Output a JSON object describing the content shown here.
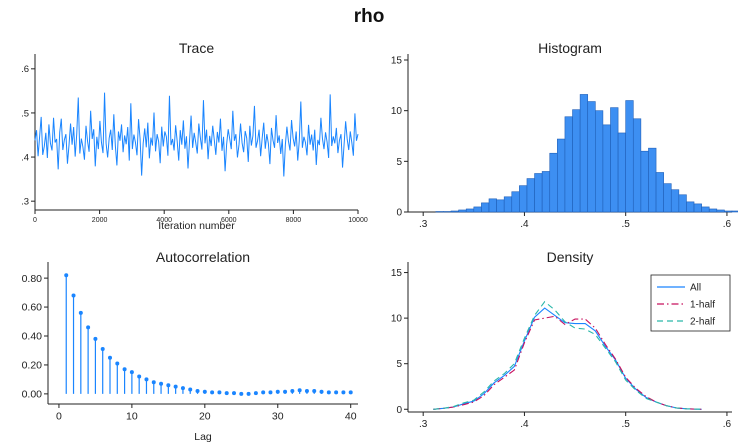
{
  "title": "rho",
  "colors": {
    "series": "#1a85ff",
    "bar_fill": "#3d8ff2",
    "bar_stroke": "#1f5fb8",
    "axis": "#222222",
    "half1": "#c8105e",
    "half2": "#2ab7a9"
  },
  "chart_data": [
    {
      "type": "line",
      "title": "Trace",
      "xlabel": "Iteration number",
      "ylabel": "",
      "xlim": [
        0,
        10000
      ],
      "ylim": [
        0.28,
        0.62
      ],
      "x_ticks": [
        0,
        2000,
        4000,
        6000,
        8000,
        10000
      ],
      "x_tick_labels": [
        "0",
        "2000",
        "4000",
        "6000",
        "8000",
        "10000"
      ],
      "y_ticks": [
        0.3,
        0.4,
        0.5,
        0.6
      ],
      "y_tick_labels": [
        ".3",
        ".4",
        ".5",
        ".6"
      ],
      "series": [
        {
          "values": [
            0.438,
            0.461,
            0.402,
            0.447,
            0.491,
            0.405,
            0.424,
            0.455,
            0.398,
            0.474,
            0.431,
            0.415,
            0.489,
            0.433,
            0.441,
            0.372,
            0.456,
            0.487,
            0.416,
            0.439,
            0.452,
            0.385,
            0.427,
            0.476,
            0.428,
            0.468,
            0.401,
            0.452,
            0.535,
            0.408,
            0.442,
            0.423,
            0.394,
            0.471,
            0.436,
            0.412,
            0.505,
            0.441,
            0.463,
            0.379,
            0.446,
            0.418,
            0.482,
            0.433,
            0.409,
            0.546,
            0.431,
            0.399,
            0.443,
            0.462,
            0.416,
            0.497,
            0.425,
            0.381,
            0.458,
            0.437,
            0.474,
            0.411,
            0.449,
            0.429,
            0.468,
            0.392,
            0.522,
            0.418,
            0.451,
            0.433,
            0.404,
            0.486,
            0.441,
            0.358,
            0.431,
            0.465,
            0.422,
            0.478,
            0.397,
            0.444,
            0.426,
            0.501,
            0.413,
            0.452,
            0.435,
            0.386,
            0.469,
            0.424,
            0.458,
            0.446,
            0.403,
            0.539,
            0.427,
            0.441,
            0.415,
            0.472,
            0.436,
            0.392,
            0.461,
            0.428,
            0.483,
            0.419,
            0.447,
            0.374,
            0.438,
            0.494,
            0.421,
            0.455,
            0.433,
            0.408,
            0.476,
            0.444,
            0.417,
            0.529,
            0.431,
            0.462,
            0.395,
            0.448,
            0.425,
            0.471,
            0.439,
            0.405,
            0.457,
            0.433,
            0.487,
            0.414,
            0.446,
            0.368,
            0.429,
            0.463,
            0.441,
            0.418,
            0.505,
            0.437,
            0.452,
            0.399,
            0.428,
            0.476,
            0.432,
            0.411,
            0.459,
            0.443,
            0.389,
            0.471,
            0.426,
            0.448,
            0.516,
            0.421,
            0.437,
            0.462,
            0.402,
            0.443,
            0.478,
            0.419,
            0.452,
            0.431,
            0.384,
            0.466,
            0.438,
            0.421,
            0.495,
            0.432,
            0.449,
            0.407,
            0.441,
            0.356,
            0.428,
            0.469,
            0.436,
            0.415,
            0.484,
            0.443,
            0.424,
            0.458,
            0.392,
            0.437,
            0.526,
            0.421,
            0.446,
            0.433,
            0.404,
            0.473,
            0.428,
            0.451,
            0.415,
            0.462,
            0.382,
            0.439,
            0.427,
            0.489,
            0.442,
            0.418,
            0.456,
            0.434,
            0.398,
            0.542,
            0.425,
            0.447,
            0.431,
            0.466,
            0.409,
            0.438,
            0.452,
            0.376,
            0.429,
            0.481,
            0.441,
            0.416,
            0.458,
            0.433,
            0.403,
            0.499,
            0.437,
            0.452
          ]
        }
      ]
    },
    {
      "type": "bar",
      "title": "Histogram",
      "xlim": [
        0.285,
        0.605
      ],
      "ylim": [
        0,
        15
      ],
      "x_ticks": [
        0.3,
        0.4,
        0.5,
        0.6
      ],
      "x_tick_labels": [
        ".3",
        ".4",
        ".5",
        ".6"
      ],
      "y_ticks": [
        0,
        5,
        10,
        15
      ],
      "y_tick_labels": [
        "0",
        "5",
        "10",
        "15"
      ],
      "bin_start": 0.3125,
      "bin_width": 0.0075,
      "values": [
        0.05,
        0.05,
        0.1,
        0.2,
        0.3,
        0.5,
        0.9,
        1.3,
        1.2,
        1.5,
        2.0,
        2.6,
        3.3,
        3.8,
        4.0,
        5.8,
        7.2,
        9.4,
        10.1,
        11.6,
        10.9,
        10.0,
        8.6,
        10.3,
        7.8,
        11.0,
        9.2,
        6.0,
        6.3,
        3.9,
        2.8,
        2.2,
        1.7,
        1.0,
        0.8,
        0.5,
        0.3,
        0.2,
        0.1,
        0.1,
        0.05,
        0.03,
        0.03,
        0.02,
        0.02,
        0.02,
        0.02,
        0.02,
        0.01,
        0.01,
        0.01,
        0.01,
        0.01,
        0.01,
        0.01,
        0.01,
        0.01
      ]
    },
    {
      "type": "scatter",
      "title": "Autocorrelation",
      "xlabel": "Lag",
      "xlim": [
        -1.5,
        41
      ],
      "ylim": [
        -0.07,
        0.87
      ],
      "x_ticks": [
        0,
        10,
        20,
        30,
        40
      ],
      "x_tick_labels": [
        "0",
        "10",
        "20",
        "30",
        "40"
      ],
      "y_ticks": [
        0.0,
        0.2,
        0.4,
        0.6,
        0.8
      ],
      "y_tick_labels": [
        "0.00",
        "0.20",
        "0.40",
        "0.60",
        "0.80"
      ],
      "x": [
        1,
        2,
        3,
        4,
        5,
        6,
        7,
        8,
        9,
        10,
        11,
        12,
        13,
        14,
        15,
        16,
        17,
        18,
        19,
        20,
        21,
        22,
        23,
        24,
        25,
        26,
        27,
        28,
        29,
        30,
        31,
        32,
        33,
        34,
        35,
        36,
        37,
        38,
        39,
        40
      ],
      "values": [
        0.82,
        0.68,
        0.56,
        0.46,
        0.38,
        0.31,
        0.25,
        0.21,
        0.17,
        0.15,
        0.12,
        0.1,
        0.08,
        0.07,
        0.06,
        0.05,
        0.04,
        0.03,
        0.02,
        0.015,
        0.01,
        0.01,
        0.005,
        0.005,
        0.0,
        0.0,
        0.005,
        0.01,
        0.01,
        0.015,
        0.015,
        0.02,
        0.025,
        0.02,
        0.02,
        0.015,
        0.01,
        0.01,
        0.01,
        0.01
      ]
    },
    {
      "type": "line",
      "title": "Density",
      "xlim": [
        0.285,
        0.605
      ],
      "ylim": [
        -0.3,
        15.5
      ],
      "x_ticks": [
        0.3,
        0.4,
        0.5,
        0.6
      ],
      "x_tick_labels": [
        ".3",
        ".4",
        ".5",
        ".6"
      ],
      "y_ticks": [
        0,
        5,
        10,
        15
      ],
      "y_tick_labels": [
        "0",
        "5",
        "10",
        "15"
      ],
      "legend_position": "top-right",
      "x": [
        0.31,
        0.32,
        0.33,
        0.34,
        0.35,
        0.36,
        0.37,
        0.38,
        0.39,
        0.4,
        0.41,
        0.42,
        0.43,
        0.44,
        0.45,
        0.46,
        0.47,
        0.48,
        0.49,
        0.5,
        0.51,
        0.52,
        0.53,
        0.54,
        0.55,
        0.56,
        0.575
      ],
      "series": [
        {
          "name": "All",
          "values": [
            0.0,
            0.1,
            0.25,
            0.6,
            0.9,
            1.7,
            2.9,
            3.7,
            4.7,
            7.5,
            10.1,
            11.1,
            10.3,
            9.5,
            9.4,
            9.4,
            8.6,
            6.9,
            5.4,
            3.4,
            2.2,
            1.3,
            0.8,
            0.4,
            0.15,
            0.05,
            0.0
          ]
        },
        {
          "name": "1-half",
          "values": [
            0.0,
            0.1,
            0.25,
            0.5,
            0.8,
            1.5,
            2.7,
            3.5,
            4.3,
            7.3,
            9.8,
            10.0,
            10.2,
            9.3,
            9.9,
            9.9,
            8.9,
            7.1,
            5.5,
            3.5,
            2.3,
            1.4,
            0.8,
            0.4,
            0.15,
            0.05,
            0.0
          ]
        },
        {
          "name": "2-half",
          "values": [
            0.0,
            0.1,
            0.3,
            0.7,
            1.0,
            1.9,
            3.1,
            3.9,
            5.0,
            7.8,
            10.3,
            11.8,
            10.9,
            9.6,
            8.9,
            8.8,
            8.2,
            6.7,
            5.2,
            3.2,
            2.1,
            1.2,
            0.8,
            0.4,
            0.15,
            0.05,
            0.0
          ]
        }
      ]
    }
  ]
}
